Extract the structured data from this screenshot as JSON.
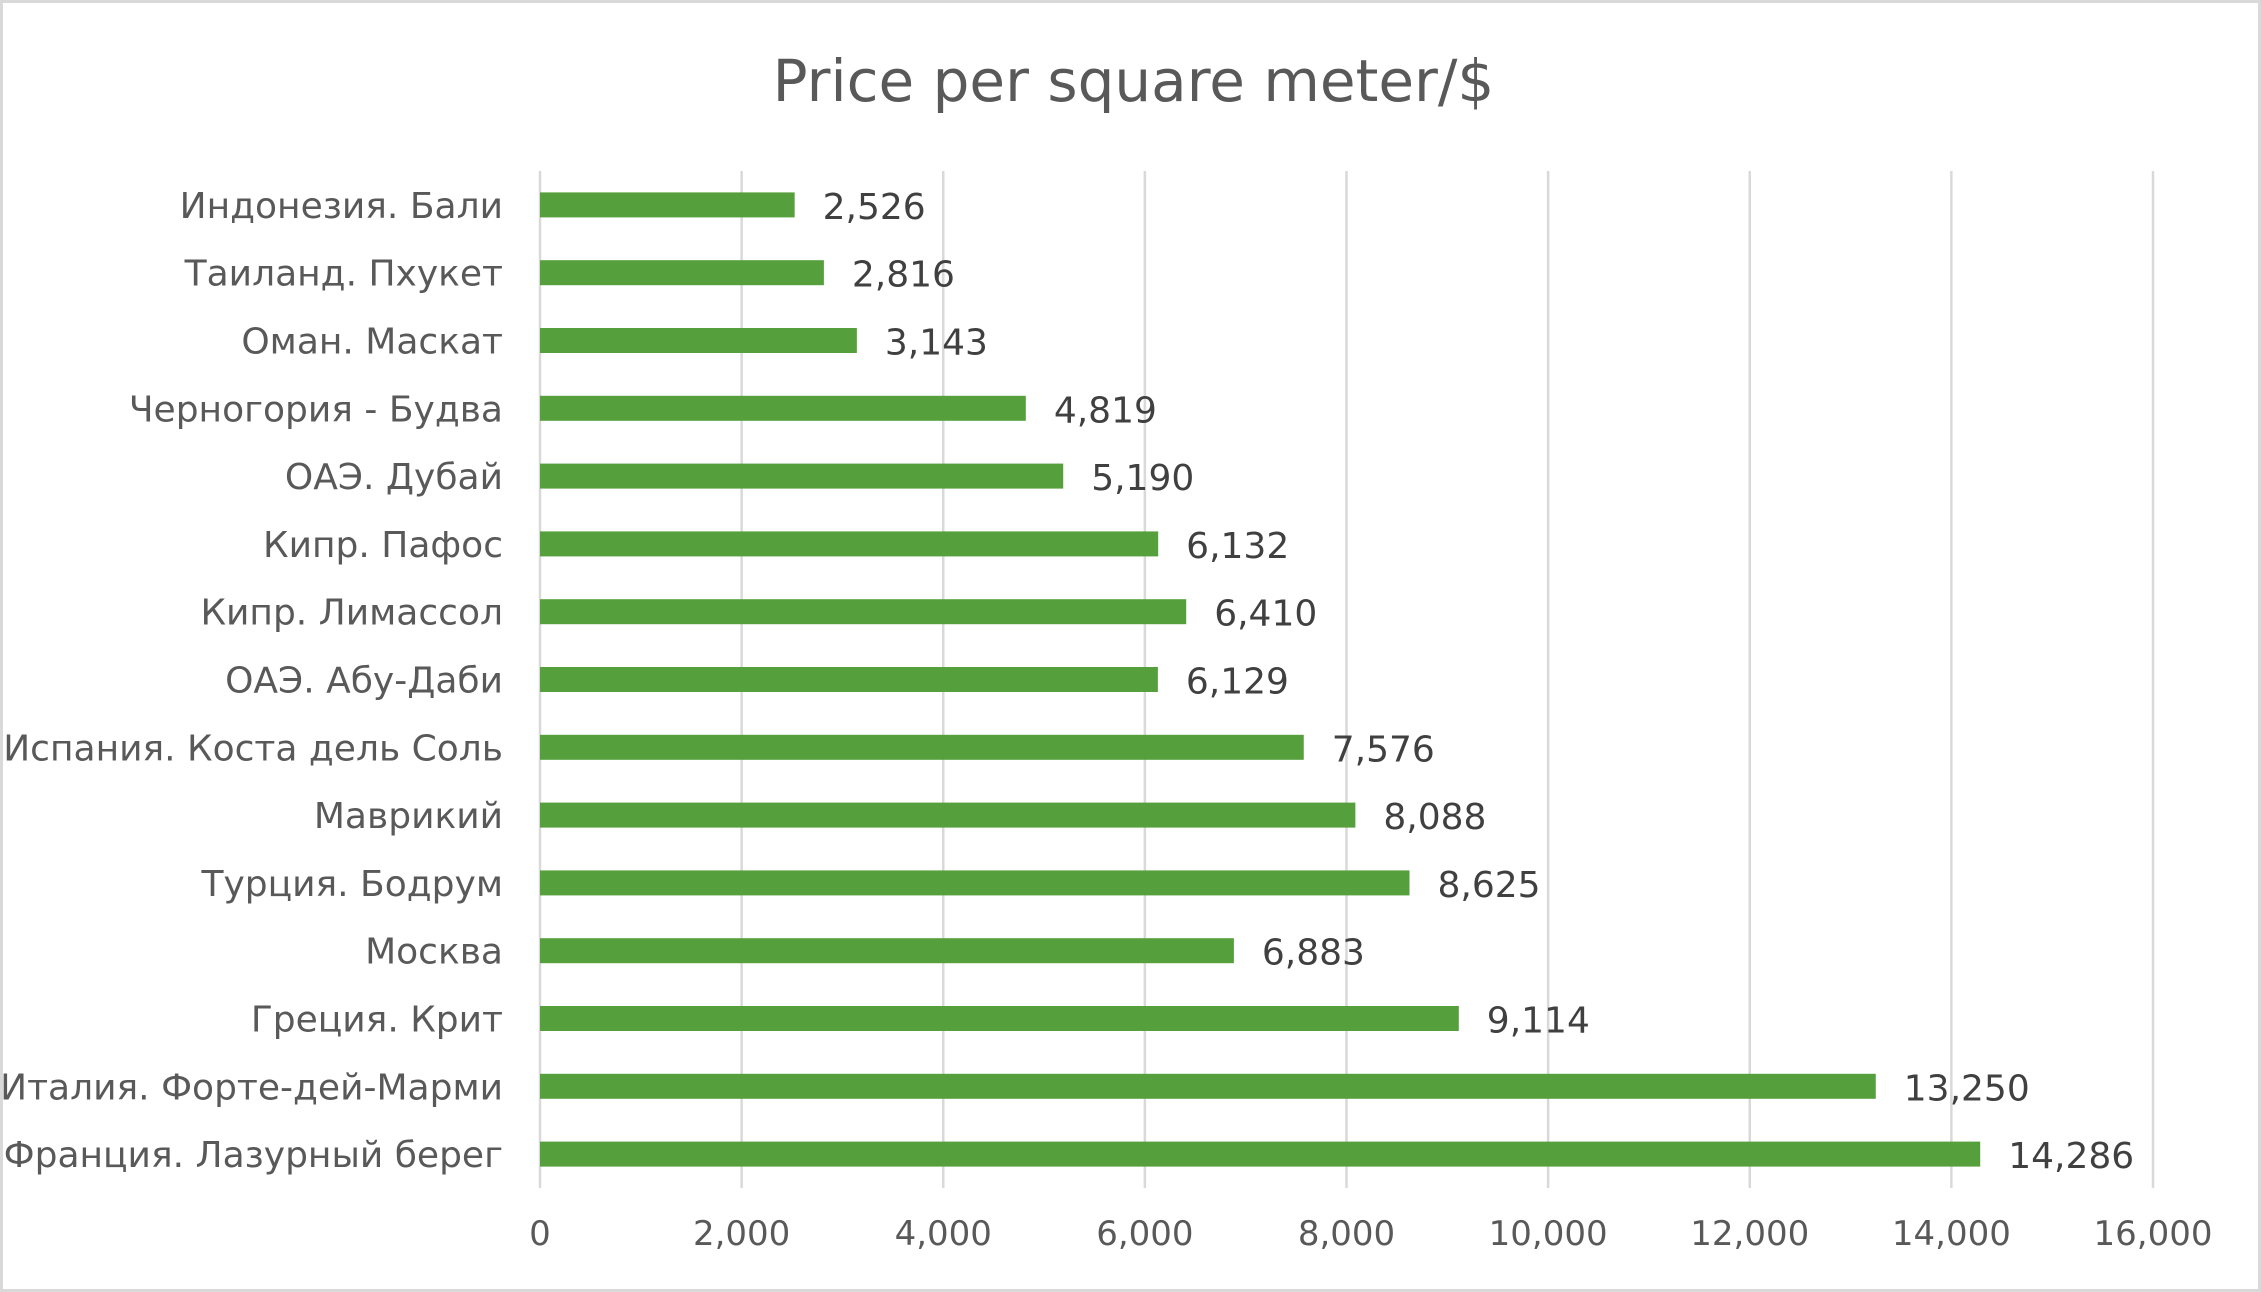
{
  "chart_data": {
    "type": "bar",
    "orientation": "horizontal",
    "title": "Price per square meter/$",
    "xlabel": "",
    "ylabel": "",
    "categories": [
      "Индонезия. Бали",
      "Таиланд. Пхукет",
      "Оман. Маскат",
      "Черногория - Будва",
      "ОАЭ. Дубай",
      "Кипр. Пафос",
      "Кипр. Лимассол",
      "ОАЭ. Абу-Даби",
      "Испания. Коста дель Соль",
      "Маврикий",
      "Турция. Бодрум",
      "Москва",
      "Греция. Крит",
      "Италия. Форте-дей-Марми",
      "Франция. Лазурный берег"
    ],
    "values": [
      2526,
      2816,
      3143,
      4819,
      5190,
      6132,
      6410,
      6129,
      7576,
      8088,
      8625,
      6883,
      9114,
      13250,
      14286
    ],
    "value_labels": [
      "2,526",
      "2,816",
      "3,143",
      "4,819",
      "5,190",
      "6,132",
      "6,410",
      "6,129",
      "7,576",
      "8,088",
      "8,625",
      "6,883",
      "9,114",
      "13,250",
      "14,286"
    ],
    "xlim": [
      0,
      16000
    ],
    "xticks": [
      0,
      2000,
      4000,
      6000,
      8000,
      10000,
      12000,
      14000,
      16000
    ],
    "xtick_labels": [
      "0",
      "2,000",
      "4,000",
      "6,000",
      "8,000",
      "10,000",
      "12,000",
      "14,000",
      "16,000"
    ],
    "grid": true,
    "legend": "none",
    "bar_color": "#55a03c",
    "grid_color": "#d9d9d9",
    "text_color": "#595959",
    "value_label_color": "#404040"
  }
}
